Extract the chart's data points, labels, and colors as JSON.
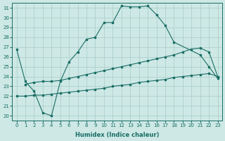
{
  "xlabel": "Humidex (Indice chaleur)",
  "xlim": [
    -0.5,
    23.5
  ],
  "ylim": [
    19.5,
    31.5
  ],
  "xticks": [
    0,
    1,
    2,
    3,
    4,
    5,
    6,
    7,
    8,
    9,
    10,
    11,
    12,
    13,
    14,
    15,
    16,
    17,
    18,
    19,
    20,
    21,
    22,
    23
  ],
  "yticks": [
    20,
    21,
    22,
    23,
    24,
    25,
    26,
    27,
    28,
    29,
    30,
    31
  ],
  "bg_color": "#cde8e5",
  "line_color": "#1a6e65",
  "grid_color": "#b8d8d4",
  "line1_x": [
    0,
    1,
    2,
    3,
    4,
    5,
    6,
    7,
    8,
    9,
    10,
    11,
    12,
    13,
    14,
    15,
    16,
    17,
    18,
    21,
    22,
    23
  ],
  "line1_y": [
    26.8,
    23.5,
    22.5,
    20.3,
    20.0,
    23.5,
    25.5,
    26.5,
    27.8,
    28.0,
    29.5,
    29.5,
    31.2,
    31.1,
    31.1,
    31.2,
    30.3,
    29.2,
    27.5,
    26.2,
    25.0,
    23.8
  ],
  "line2_x": [
    1,
    2,
    3,
    4,
    5,
    6,
    7,
    8,
    9,
    10,
    11,
    12,
    13,
    14,
    15,
    16,
    17,
    18,
    19,
    20,
    21,
    22,
    23
  ],
  "line2_y": [
    23.2,
    23.4,
    23.5,
    23.5,
    23.6,
    23.8,
    24.0,
    24.2,
    24.4,
    24.6,
    24.8,
    25.0,
    25.2,
    25.4,
    25.6,
    25.8,
    26.0,
    26.2,
    26.5,
    26.8,
    26.9,
    26.5,
    24.0
  ],
  "line3_x": [
    0,
    1,
    2,
    3,
    4,
    5,
    6,
    7,
    8,
    9,
    10,
    11,
    12,
    13,
    14,
    15,
    16,
    17,
    18,
    19,
    20,
    21,
    22,
    23
  ],
  "line3_y": [
    22.0,
    22.0,
    22.1,
    22.1,
    22.2,
    22.3,
    22.4,
    22.5,
    22.6,
    22.7,
    22.8,
    23.0,
    23.1,
    23.2,
    23.4,
    23.5,
    23.6,
    23.7,
    23.9,
    24.0,
    24.1,
    24.2,
    24.3,
    24.0
  ]
}
